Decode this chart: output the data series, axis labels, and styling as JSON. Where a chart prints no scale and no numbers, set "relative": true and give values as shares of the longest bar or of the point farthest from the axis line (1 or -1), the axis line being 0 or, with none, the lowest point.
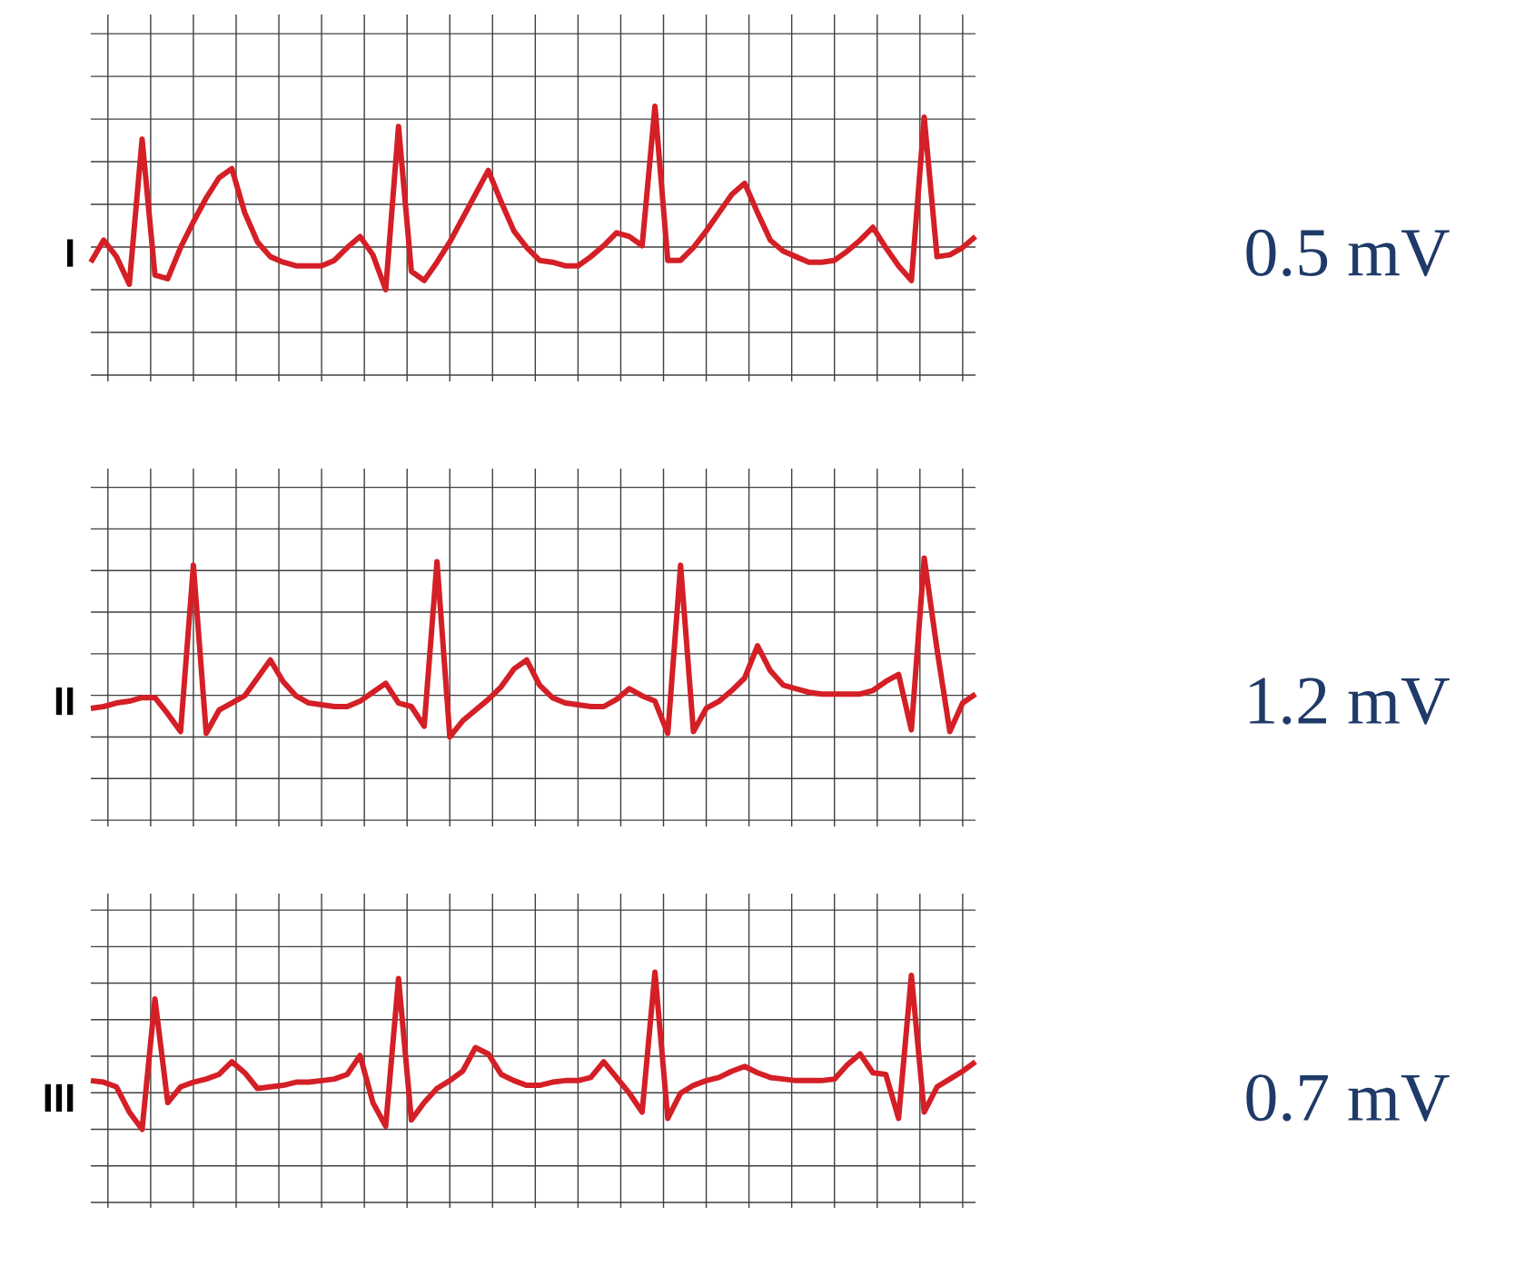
{
  "chart_data": [
    {
      "type": "line",
      "relative": true,
      "ylabel": "I",
      "annotations": [
        "0.5 mV"
      ],
      "grid": true,
      "tick_labels": false,
      "categories": [
        null,
        null,
        null,
        null,
        null,
        null,
        null,
        null,
        null,
        null,
        null,
        null,
        null,
        null,
        null,
        null,
        null,
        null,
        null,
        null,
        null,
        null,
        null,
        null,
        null,
        null,
        null,
        null,
        null,
        null,
        null,
        null,
        null,
        null,
        null,
        null,
        null,
        null,
        null,
        null,
        null,
        null,
        null,
        null,
        null,
        null,
        null,
        null,
        null,
        null,
        null,
        null,
        null,
        null,
        null,
        null,
        null,
        null,
        null,
        null,
        null,
        null,
        null,
        null,
        null,
        null,
        null,
        null,
        null,
        null
      ],
      "series": [
        {
          "color": "#d41f26",
          "values": [
            0.15,
            0.27,
            0.18,
            0.03,
            0.82,
            0.08,
            0.06,
            0.23,
            0.37,
            0.5,
            0.61,
            0.66,
            0.42,
            0.26,
            0.18,
            0.15,
            0.13,
            0.13,
            0.13,
            0.16,
            0.23,
            0.29,
            0.19,
            0,
            0.89,
            0.1,
            0.05,
            0.15,
            0.26,
            0.39,
            0.52,
            0.65,
            0.48,
            0.32,
            0.23,
            0.16,
            0.15,
            0.13,
            0.13,
            0.18,
            0.24,
            0.31,
            0.29,
            0.24,
            1,
            0.16,
            0.16,
            0.23,
            0.32,
            0.42,
            0.52,
            0.58,
            0.42,
            0.27,
            0.21,
            0.18,
            0.15,
            0.15,
            0.16,
            0.21,
            0.27,
            0.34,
            0.23,
            0.13,
            0.05,
            0.94,
            0.18,
            0.19,
            0.23,
            0.29
          ]
        }
      ]
    },
    {
      "type": "line",
      "relative": true,
      "ylabel": "II",
      "annotations": [
        "1.2 mV"
      ],
      "grid": true,
      "tick_labels": false,
      "categories": [
        null,
        null,
        null,
        null,
        null,
        null,
        null,
        null,
        null,
        null,
        null,
        null,
        null,
        null,
        null,
        null,
        null,
        null,
        null,
        null,
        null,
        null,
        null,
        null,
        null,
        null,
        null,
        null,
        null,
        null,
        null,
        null,
        null,
        null,
        null,
        null,
        null,
        null,
        null,
        null,
        null,
        null,
        null,
        null,
        null,
        null,
        null,
        null,
        null,
        null,
        null,
        null,
        null,
        null,
        null,
        null,
        null,
        null,
        null,
        null,
        null,
        null,
        null,
        null,
        null,
        null,
        null,
        null,
        null,
        null
      ],
      "series": [
        {
          "color": "#d41f26",
          "values": [
            0.16,
            0.17,
            0.19,
            0.2,
            0.22,
            0.22,
            0.13,
            0.03,
            0.96,
            0.02,
            0.15,
            0.19,
            0.23,
            0.33,
            0.43,
            0.31,
            0.23,
            0.19,
            0.18,
            0.17,
            0.17,
            0.2,
            0.25,
            0.3,
            0.19,
            0.17,
            0.06,
            0.98,
            0,
            0.09,
            0.15,
            0.21,
            0.28,
            0.38,
            0.43,
            0.29,
            0.22,
            0.19,
            0.18,
            0.17,
            0.17,
            0.21,
            0.27,
            0.23,
            0.2,
            0.02,
            0.96,
            0.03,
            0.16,
            0.2,
            0.26,
            0.33,
            0.51,
            0.37,
            0.29,
            0.27,
            0.25,
            0.24,
            0.24,
            0.24,
            0.24,
            0.26,
            0.31,
            0.35,
            0.04,
            1,
            0.49,
            0.03,
            0.19,
            0.24
          ]
        }
      ]
    },
    {
      "type": "line",
      "relative": true,
      "ylabel": "III",
      "annotations": [
        "0.7 mV"
      ],
      "grid": true,
      "tick_labels": false,
      "categories": [
        null,
        null,
        null,
        null,
        null,
        null,
        null,
        null,
        null,
        null,
        null,
        null,
        null,
        null,
        null,
        null,
        null,
        null,
        null,
        null,
        null,
        null,
        null,
        null,
        null,
        null,
        null,
        null,
        null,
        null,
        null,
        null,
        null,
        null,
        null,
        null,
        null,
        null,
        null,
        null,
        null,
        null,
        null,
        null,
        null,
        null,
        null,
        null,
        null,
        null,
        null,
        null,
        null,
        null,
        null,
        null,
        null,
        null,
        null,
        null,
        null,
        null,
        null,
        null,
        null,
        null,
        null,
        null,
        null,
        null
      ],
      "series": [
        {
          "color": "#d41f26",
          "values": [
            0.31,
            0.3,
            0.27,
            0.11,
            0,
            0.83,
            0.17,
            0.27,
            0.3,
            0.32,
            0.35,
            0.43,
            0.36,
            0.26,
            0.27,
            0.28,
            0.3,
            0.3,
            0.31,
            0.32,
            0.35,
            0.47,
            0.17,
            0.02,
            0.96,
            0.06,
            0.17,
            0.26,
            0.31,
            0.37,
            0.52,
            0.48,
            0.35,
            0.31,
            0.28,
            0.28,
            0.3,
            0.31,
            0.31,
            0.33,
            0.43,
            0.33,
            0.23,
            0.11,
            1,
            0.07,
            0.23,
            0.28,
            0.31,
            0.33,
            0.37,
            0.4,
            0.36,
            0.33,
            0.32,
            0.31,
            0.31,
            0.31,
            0.32,
            0.41,
            0.48,
            0.36,
            0.35,
            0.07,
            0.98,
            0.11,
            0.27,
            0.32,
            0.37,
            0.43
          ]
        }
      ]
    }
  ]
}
